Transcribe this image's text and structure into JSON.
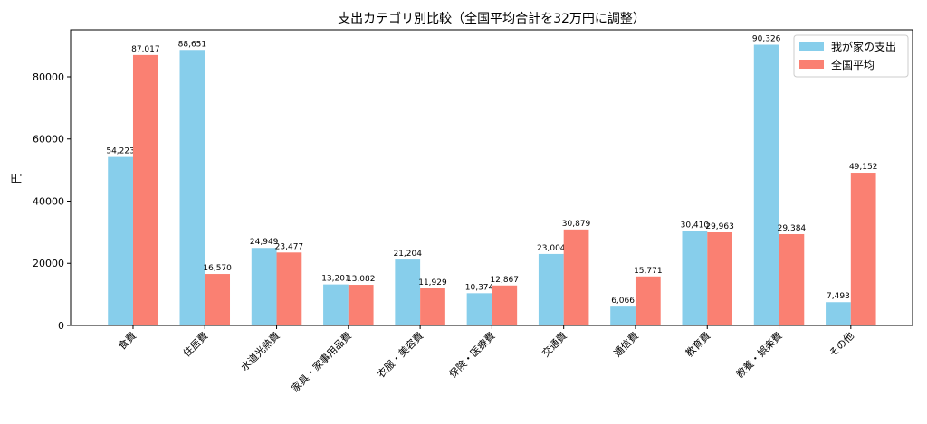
{
  "chart_data": {
    "type": "bar",
    "title": "支出カテゴリ別比較（全国平均合計を32万円に調整）",
    "xlabel": "",
    "ylabel": "円",
    "ylim": [
      0,
      95127
    ],
    "yticks": [
      0,
      20000,
      40000,
      60000,
      80000
    ],
    "ytick_labels": [
      "0",
      "20000",
      "40000",
      "60000",
      "80000"
    ],
    "grid": false,
    "legend_position": "top-right",
    "categories": [
      "食費",
      "住居費",
      "水道光熱費",
      "家具・家事用品費",
      "衣服・美容費",
      "保険・医療費",
      "交通費",
      "通信費",
      "教育費",
      "教養・娯楽費",
      "その他"
    ],
    "series": [
      {
        "name": "我が家の支出",
        "color": "#87ceeb",
        "values": [
          54223,
          88651,
          24949,
          13201,
          21204,
          10374,
          23004,
          6066,
          30410,
          90326,
          7493
        ],
        "labels": [
          "54,223",
          "88,651",
          "24,949",
          "13,201",
          "21,204",
          "10,374",
          "23,004",
          "6,066",
          "30,410",
          "90,326",
          "7,493"
        ]
      },
      {
        "name": "全国平均",
        "color": "#fa8072",
        "values": [
          87017,
          16570,
          23477,
          13082,
          11929,
          12867,
          30879,
          15771,
          29963,
          29384,
          49152
        ],
        "labels": [
          "87,017",
          "16,570",
          "23,477",
          "13,082",
          "11,929",
          "12,867",
          "30,879",
          "15,771",
          "29,963",
          "29,384",
          "49,152"
        ]
      }
    ]
  }
}
